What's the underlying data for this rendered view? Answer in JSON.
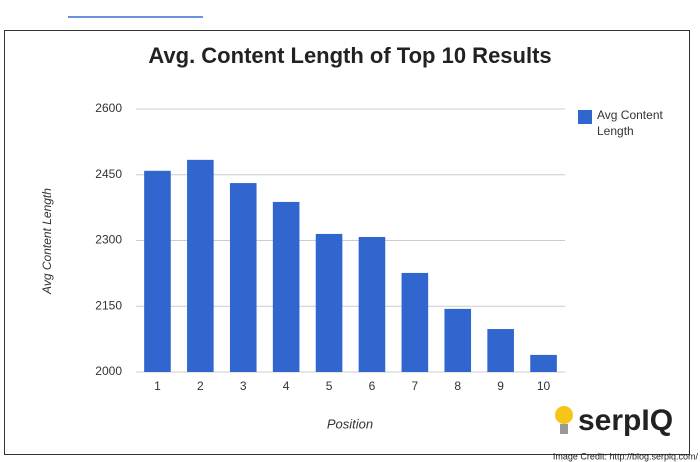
{
  "chart_data": {
    "type": "bar",
    "title": "Avg. Content Length of Top 10 Results",
    "x_label": "Position",
    "y_label": "Avg Content Length",
    "categories": [
      "1",
      "2",
      "3",
      "4",
      "5",
      "6",
      "7",
      "8",
      "9",
      "10"
    ],
    "series": [
      {
        "name": "Avg Content Length",
        "color": "#3166cf",
        "values": [
          2459,
          2484,
          2431,
          2388,
          2315,
          2308,
          2226,
          2144,
          2098,
          2039
        ]
      }
    ],
    "ylim": [
      2000,
      2600
    ],
    "yticks": [
      2000,
      2150,
      2300,
      2450,
      2600
    ],
    "grid": true,
    "legend": "right"
  },
  "logo": "serpIQ",
  "credit": "Image Credit: http://blog.serpiq.com/"
}
